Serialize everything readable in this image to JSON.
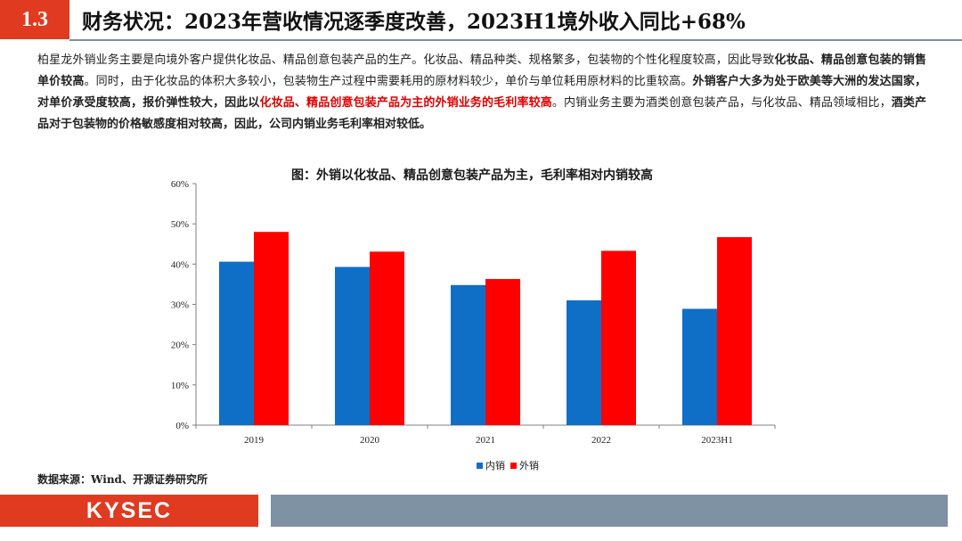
{
  "header": {
    "section_number": "1.3",
    "title": "财务状况：2023年营收情况逐季度改善，2023H1境外收入同比+68%"
  },
  "intro": {
    "p1": "柏星龙外销业务主要是向境外客户提供化妆品、精品创意包装产品的生产。化妆品、精品种类、规格繁多，包装物的个性化程度较高，因此导致",
    "b1": "化妆品、精品创意包装的销售单价较高",
    "p2": "。同时，由于化妆品的体积大多较小，包装物生产过程中需要耗用的原材料较少，单价与单位耗用原材料的比重较高。",
    "b2": "外销客户大多为处于欧美等大洲的发达国家，对单价承受度较高，报价弹性较大，因此以",
    "r1": "化妆品、精品创意包装产品为主的外销业务的毛利率较高",
    "p3": "。内销业务主要为酒类创意包装产品，与化妆品、精品领域相比，",
    "b3": "酒类产品对于包装物的价格敏感度相对较高，因此，公司内销业务毛利率相对较低。"
  },
  "chart_title": "图：外销以化妆品、精品创意包装产品为主，毛利率相对内销较高",
  "chart_data": {
    "type": "bar",
    "categories": [
      "2019",
      "2020",
      "2021",
      "2022",
      "2023H1"
    ],
    "series": [
      {
        "name": "内销",
        "color": "#0f6fc6",
        "values": [
          40.6,
          39.3,
          34.8,
          31.0,
          28.9
        ]
      },
      {
        "name": "外销",
        "color": "#ff0000",
        "values": [
          48.0,
          43.1,
          36.3,
          43.3,
          46.7
        ]
      }
    ],
    "ylim": [
      0,
      60
    ],
    "yticks": [
      0,
      10,
      20,
      30,
      40,
      50,
      60
    ],
    "ytick_format": "%",
    "grid": false,
    "legend": "bottom"
  },
  "source": "数据来源：Wind、开源证券研究所",
  "footer": {
    "logo": "KYSEC",
    "colors": {
      "accent": "#e03a20",
      "bar": "#7f92a3"
    }
  }
}
